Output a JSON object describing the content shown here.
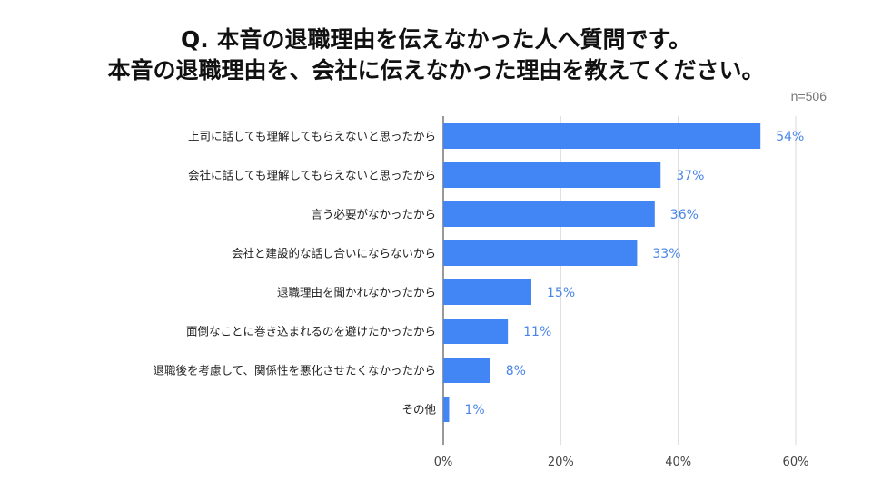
{
  "title_line1": "Q. 本音の退職理由を伝えなかった人へ質問です。",
  "title_line2": "本音の退職理由を、会社に伝えなかった理由を教えてください。",
  "sample_size": "n=506",
  "colors": {
    "bar": "#4285f4",
    "value_label": "#4a86e8",
    "grid": "#d9d9d9",
    "axis_text": "#444444"
  },
  "chart_data": {
    "type": "bar",
    "orientation": "horizontal",
    "title": "Q. 本音の退職理由を伝えなかった人へ質問です。本音の退職理由を、会社に伝えなかった理由を教えてください。",
    "categories": [
      "上司に話しても理解してもらえないと思ったから",
      "会社に話しても理解してもらえないと思ったから",
      "言う必要がなかったから",
      "会社と建設的な話し合いにならないから",
      "退職理由を聞かれなかったから",
      "面倒なことに巻き込まれるのを避けたかったから",
      "退職後を考慮して、関係性を悪化させたくなかったから",
      "その他"
    ],
    "values": [
      54,
      37,
      36,
      33,
      15,
      11,
      8,
      1
    ],
    "value_labels": [
      "54%",
      "37%",
      "36%",
      "33%",
      "15%",
      "11%",
      "8%",
      "1%"
    ],
    "xlim": [
      0,
      60
    ],
    "x_ticks": [
      0,
      20,
      40,
      60
    ],
    "x_tick_labels": [
      "0%",
      "20%",
      "40%",
      "60%"
    ],
    "xlabel": "",
    "ylabel": "",
    "grid": true,
    "legend": "none"
  }
}
